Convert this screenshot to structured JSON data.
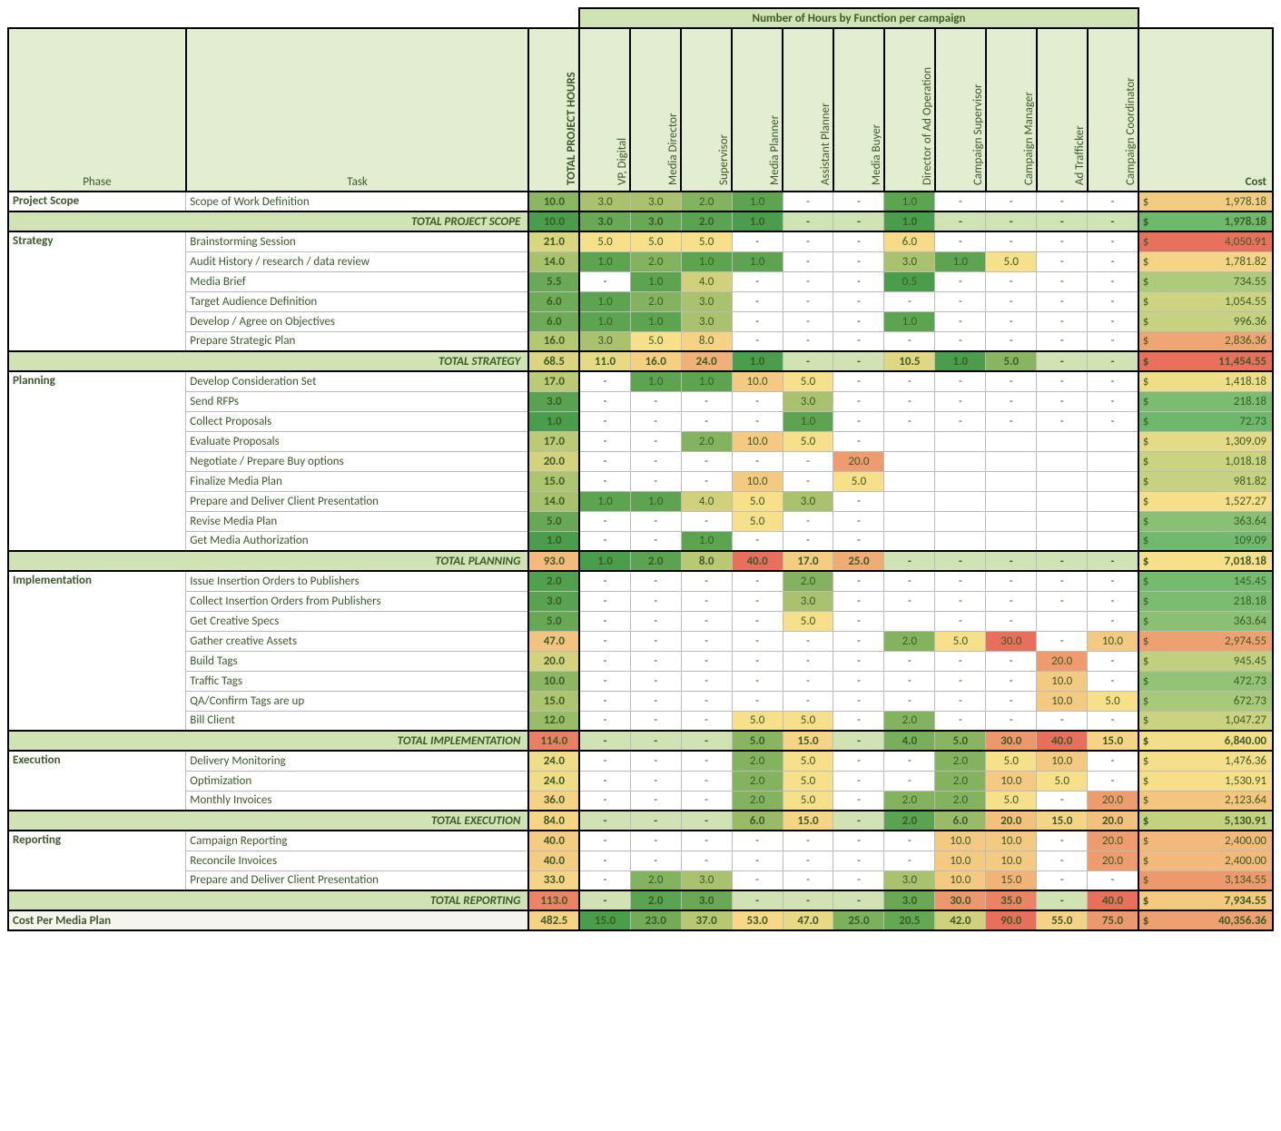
{
  "title_band": "Number of Hours by Function per campaign",
  "header": {
    "phase": "Phase",
    "task": "Task",
    "cost": "Cost",
    "functions": [
      "TOTAL PROJECT HOURS",
      "VP, Digital",
      "Media Director",
      "Supervisor",
      "Media Planner",
      "Assistant Planner",
      "Media Buyer",
      "Director of Ad Operation",
      "Campaign Supervisor",
      "Campaign Manager",
      "Ad Trafficker",
      "Campaign Coordinator"
    ]
  },
  "heat_palette": {
    "lo": "#4a9d4a",
    "mid": "#f7e08a",
    "hi": "#e86f5c",
    "none": "#ffffff"
  },
  "cost_palette": {
    "lo": "#6db86d",
    "mid": "#f7e08a",
    "hi": "#e86f5c"
  },
  "sections": [
    {
      "phase": "Project Scope",
      "rows": [
        {
          "task": "Scope of Work Definition",
          "vals": [
            "10.0",
            "3.0",
            "3.0",
            "2.0",
            "1.0",
            "-",
            "-",
            "1.0",
            "-",
            "-",
            "-",
            "-"
          ],
          "cost": "1,978.18"
        }
      ],
      "total": {
        "label": "TOTAL PROJECT SCOPE",
        "vals": [
          "10.0",
          "3.0",
          "3.0",
          "2.0",
          "1.0",
          "-",
          "-",
          "1.0",
          "-",
          "-",
          "-",
          "-"
        ],
        "cost": "1,978.18"
      }
    },
    {
      "phase": "Strategy",
      "rows": [
        {
          "task": "Brainstorming Session",
          "vals": [
            "21.0",
            "5.0",
            "5.0",
            "5.0",
            "-",
            "-",
            "-",
            "6.0",
            "-",
            "-",
            "-",
            "-"
          ],
          "cost": "4,050.91"
        },
        {
          "task": "Audit History / research / data review",
          "vals": [
            "14.0",
            "1.0",
            "2.0",
            "1.0",
            "1.0",
            "-",
            "-",
            "3.0",
            "1.0",
            "5.0",
            "-",
            "-"
          ],
          "cost": "1,781.82"
        },
        {
          "task": "Media Brief",
          "vals": [
            "5.5",
            "-",
            "1.0",
            "4.0",
            "-",
            "-",
            "-",
            "0.5",
            "-",
            "-",
            "-",
            "-"
          ],
          "cost": "734.55"
        },
        {
          "task": "Target Audience Definition",
          "vals": [
            "6.0",
            "1.0",
            "2.0",
            "3.0",
            "-",
            "-",
            "-",
            "-",
            "-",
            "-",
            "-",
            "-"
          ],
          "cost": "1,054.55"
        },
        {
          "task": "Develop / Agree on Objectives",
          "vals": [
            "6.0",
            "1.0",
            "1.0",
            "3.0",
            "-",
            "-",
            "-",
            "1.0",
            "-",
            "-",
            "-",
            "-"
          ],
          "cost": "996.36"
        },
        {
          "task": "Prepare Strategic Plan",
          "vals": [
            "16.0",
            "3.0",
            "5.0",
            "8.0",
            "-",
            "-",
            "-",
            "-",
            "-",
            "-",
            "-",
            "-"
          ],
          "cost": "2,836.36"
        }
      ],
      "total": {
        "label": "TOTAL STRATEGY",
        "vals": [
          "68.5",
          "11.0",
          "16.0",
          "24.0",
          "1.0",
          "-",
          "-",
          "10.5",
          "1.0",
          "5.0",
          "-",
          "-"
        ],
        "cost": "11,454.55"
      }
    },
    {
      "phase": "Planning",
      "rows": [
        {
          "task": "Develop Consideration Set",
          "vals": [
            "17.0",
            "-",
            "1.0",
            "1.0",
            "10.0",
            "5.0",
            "-",
            "-",
            "-",
            "-",
            "-",
            "-"
          ],
          "cost": "1,418.18"
        },
        {
          "task": "Send RFPs",
          "vals": [
            "3.0",
            "-",
            "-",
            "-",
            "-",
            "3.0",
            "-",
            "-",
            "-",
            "-",
            "-",
            "-"
          ],
          "cost": "218.18"
        },
        {
          "task": "Collect Proposals",
          "vals": [
            "1.0",
            "-",
            "-",
            "-",
            "-",
            "1.0",
            "-",
            "-",
            "-",
            "-",
            "-",
            "-"
          ],
          "cost": "72.73"
        },
        {
          "task": "Evaluate Proposals",
          "vals": [
            "17.0",
            "-",
            "-",
            "2.0",
            "10.0",
            "5.0",
            "-",
            "",
            "",
            "",
            "",
            ""
          ],
          "cost": "1,309.09"
        },
        {
          "task": "Negotiate / Prepare Buy options",
          "vals": [
            "20.0",
            "-",
            "-",
            "-",
            "-",
            "-",
            "20.0",
            "",
            "",
            "",
            "",
            ""
          ],
          "cost": "1,018.18"
        },
        {
          "task": "Finalize Media Plan",
          "vals": [
            "15.0",
            "-",
            "-",
            "-",
            "10.0",
            "-",
            "5.0",
            "",
            "",
            "",
            "",
            ""
          ],
          "cost": "981.82"
        },
        {
          "task": "Prepare and Deliver Client Presentation",
          "vals": [
            "14.0",
            "1.0",
            "1.0",
            "4.0",
            "5.0",
            "3.0",
            "-",
            "",
            "",
            "",
            "",
            ""
          ],
          "cost": "1,527.27"
        },
        {
          "task": "Revise Media Plan",
          "vals": [
            "5.0",
            "-",
            "-",
            "-",
            "5.0",
            "-",
            "-",
            "",
            "",
            "",
            "",
            ""
          ],
          "cost": "363.64"
        },
        {
          "task": "Get Media Authorization",
          "vals": [
            "1.0",
            "-",
            "-",
            "1.0",
            "-",
            "-",
            "-",
            "",
            "",
            "",
            "",
            ""
          ],
          "cost": "109.09"
        }
      ],
      "total": {
        "label": "TOTAL PLANNING",
        "vals": [
          "93.0",
          "1.0",
          "2.0",
          "8.0",
          "40.0",
          "17.0",
          "25.0",
          "-",
          "-",
          "-",
          "-",
          "-"
        ],
        "cost": "7,018.18"
      }
    },
    {
      "phase": "Implementation",
      "rows": [
        {
          "task": "Issue Insertion Orders to Publishers",
          "vals": [
            "2.0",
            "-",
            "-",
            "-",
            "-",
            "2.0",
            "-",
            "-",
            "-",
            "-",
            "-",
            "-"
          ],
          "cost": "145.45"
        },
        {
          "task": "Collect Insertion Orders from Publishers",
          "vals": [
            "3.0",
            "-",
            "-",
            "-",
            "-",
            "3.0",
            "-",
            "-",
            "-",
            "-",
            "-",
            "-"
          ],
          "cost": "218.18"
        },
        {
          "task": "Get Creative Specs",
          "vals": [
            "5.0",
            "-",
            "-",
            "-",
            "-",
            "5.0",
            "-",
            "",
            "-",
            "-",
            "",
            "-"
          ],
          "cost": "363.64"
        },
        {
          "task": "Gather creative Assets",
          "vals": [
            "47.0",
            "-",
            "-",
            "-",
            "-",
            "-",
            "-",
            "2.0",
            "5.0",
            "30.0",
            "-",
            "10.0"
          ],
          "cost": "2,974.55"
        },
        {
          "task": "Build Tags",
          "vals": [
            "20.0",
            "-",
            "-",
            "-",
            "-",
            "-",
            "-",
            "-",
            "-",
            "-",
            "20.0",
            "-"
          ],
          "cost": "945.45"
        },
        {
          "task": "Traffic Tags",
          "vals": [
            "10.0",
            "-",
            "-",
            "-",
            "-",
            "-",
            "-",
            "-",
            "-",
            "-",
            "10.0",
            "-"
          ],
          "cost": "472.73"
        },
        {
          "task": "QA/Confirm Tags are up",
          "vals": [
            "15.0",
            "-",
            "-",
            "-",
            "-",
            "-",
            "-",
            "-",
            "-",
            "-",
            "10.0",
            "5.0"
          ],
          "cost": "672.73"
        },
        {
          "task": "Bill Client",
          "vals": [
            "12.0",
            "-",
            "-",
            "-",
            "5.0",
            "5.0",
            "-",
            "2.0",
            "-",
            "-",
            "-",
            "-"
          ],
          "cost": "1,047.27"
        }
      ],
      "total": {
        "label": "TOTAL IMPLEMENTATION",
        "vals": [
          "114.0",
          "-",
          "-",
          "-",
          "5.0",
          "15.0",
          "-",
          "4.0",
          "5.0",
          "30.0",
          "40.0",
          "15.0"
        ],
        "cost": "6,840.00"
      }
    },
    {
      "phase": "Execution",
      "rows": [
        {
          "task": "Delivery Monitoring",
          "vals": [
            "24.0",
            "-",
            "-",
            "-",
            "2.0",
            "5.0",
            "-",
            "-",
            "2.0",
            "5.0",
            "10.0",
            "-"
          ],
          "cost": "1,476.36"
        },
        {
          "task": "Optimization",
          "vals": [
            "24.0",
            "-",
            "-",
            "-",
            "2.0",
            "5.0",
            "-",
            "-",
            "2.0",
            "10.0",
            "5.0",
            "-"
          ],
          "cost": "1,530.91"
        },
        {
          "task": "Monthly Invoices",
          "vals": [
            "36.0",
            "-",
            "-",
            "-",
            "2.0",
            "5.0",
            "-",
            "2.0",
            "2.0",
            "5.0",
            "-",
            "20.0"
          ],
          "cost": "2,123.64"
        }
      ],
      "total": {
        "label": "TOTAL EXECUTION",
        "vals": [
          "84.0",
          "-",
          "-",
          "-",
          "6.0",
          "15.0",
          "-",
          "2.0",
          "6.0",
          "20.0",
          "15.0",
          "20.0"
        ],
        "cost": "5,130.91"
      }
    },
    {
      "phase": "Reporting",
      "rows": [
        {
          "task": "Campaign Reporting",
          "vals": [
            "40.0",
            "-",
            "-",
            "-",
            "-",
            "-",
            "-",
            "-",
            "10.0",
            "10.0",
            "-",
            "20.0"
          ],
          "cost": "2,400.00"
        },
        {
          "task": "Reconcile Invoices",
          "vals": [
            "40.0",
            "-",
            "-",
            "-",
            "-",
            "-",
            "-",
            "-",
            "10.0",
            "10.0",
            "-",
            "20.0"
          ],
          "cost": "2,400.00"
        },
        {
          "task": "Prepare and Deliver Client Presentation",
          "vals": [
            "33.0",
            "-",
            "2.0",
            "3.0",
            "-",
            "-",
            "-",
            "3.0",
            "10.0",
            "15.0",
            "-",
            "-"
          ],
          "cost": "3,134.55"
        }
      ],
      "total": {
        "label": "TOTAL REPORTING",
        "vals": [
          "113.0",
          "-",
          "2.0",
          "3.0",
          "-",
          "-",
          "-",
          "3.0",
          "30.0",
          "35.0",
          "-",
          "40.0"
        ],
        "cost": "7,934.55"
      }
    }
  ],
  "grand": {
    "label": "Cost Per Media Plan",
    "vals": [
      "482.5",
      "15.0",
      "23.0",
      "37.0",
      "53.0",
      "47.0",
      "25.0",
      "20.5",
      "42.0",
      "90.0",
      "55.0",
      "75.0"
    ],
    "cost": "40,356.36"
  },
  "heat_ranges": {
    "col0": {
      "min": 1,
      "mid": 25,
      "max": 115
    },
    "colN": {
      "min": 0.5,
      "mid": 5,
      "max": 30
    },
    "cost": {
      "min": 70,
      "mid": 1500,
      "max": 4100
    },
    "total_col0": {
      "min": 10,
      "mid": 80,
      "max": 120
    },
    "total_colN": {
      "min": 1,
      "mid": 12,
      "max": 40
    },
    "total_cost": {
      "min": 1900,
      "mid": 7000,
      "max": 11500
    },
    "grand": {
      "min": 15,
      "mid": 50,
      "max": 90
    }
  }
}
